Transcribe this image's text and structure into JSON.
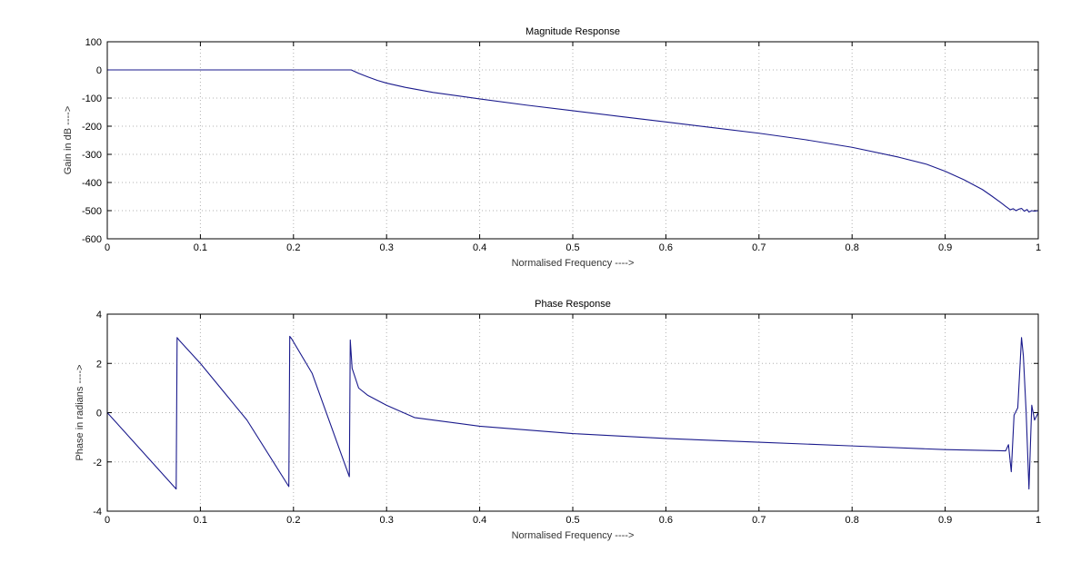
{
  "chart_data": [
    {
      "type": "line",
      "title": "Magnitude Response",
      "xlabel": "Normalised Frequency ---->",
      "ylabel": "Gain in dB ---->",
      "xlim": [
        0,
        1
      ],
      "ylim": [
        -600,
        100
      ],
      "xticks": [
        0,
        0.1,
        0.2,
        0.3,
        0.4,
        0.5,
        0.6,
        0.7,
        0.8,
        0.9,
        1
      ],
      "yticks": [
        -600,
        -500,
        -400,
        -300,
        -200,
        -100,
        0,
        100
      ],
      "grid": true,
      "color": "#1a1a8c",
      "series": [
        {
          "x": [
            0,
            0.1,
            0.2,
            0.262,
            0.27,
            0.28,
            0.29,
            0.3,
            0.32,
            0.35,
            0.4,
            0.45,
            0.5,
            0.55,
            0.6,
            0.65,
            0.7,
            0.75,
            0.8,
            0.85,
            0.88,
            0.9,
            0.92,
            0.94,
            0.95,
            0.96,
            0.965,
            0.97,
            0.973,
            0.976,
            0.979,
            0.982,
            0.985,
            0.988,
            0.99,
            0.993,
            0.996,
            1.0
          ],
          "y": [
            0,
            0,
            0,
            0,
            -12,
            -25,
            -37,
            -47,
            -62,
            -80,
            -103,
            -125,
            -145,
            -165,
            -185,
            -205,
            -225,
            -248,
            -275,
            -310,
            -335,
            -360,
            -390,
            -425,
            -448,
            -472,
            -485,
            -497,
            -493,
            -500,
            -495,
            -492,
            -502,
            -496,
            -505,
            -500,
            -502,
            -500
          ]
        }
      ]
    },
    {
      "type": "line",
      "title": "Phase Response",
      "xlabel": "Normalised Frequency ---->",
      "ylabel": "Phase in radians ---->",
      "xlim": [
        0,
        1
      ],
      "ylim": [
        -4,
        4
      ],
      "xticks": [
        0,
        0.1,
        0.2,
        0.3,
        0.4,
        0.5,
        0.6,
        0.7,
        0.8,
        0.9,
        1
      ],
      "yticks": [
        -4,
        -2,
        0,
        2,
        4
      ],
      "grid": true,
      "color": "#1a1a8c",
      "series": [
        {
          "x": [
            0,
            0.074,
            0.075,
            0.077,
            0.1,
            0.15,
            0.195,
            0.196,
            0.198,
            0.22,
            0.24,
            0.26,
            0.261,
            0.263,
            0.27,
            0.28,
            0.3,
            0.33,
            0.4,
            0.5,
            0.6,
            0.7,
            0.8,
            0.9,
            0.965,
            0.968,
            0.971,
            0.974,
            0.978,
            0.982,
            0.984,
            0.987,
            0.99,
            0.993,
            0.996,
            1.0
          ],
          "y": [
            0,
            -3.1,
            3.05,
            2.95,
            2.0,
            -0.3,
            -3.0,
            3.1,
            3.0,
            1.6,
            -0.5,
            -2.6,
            2.95,
            1.8,
            1.0,
            0.7,
            0.3,
            -0.2,
            -0.55,
            -0.85,
            -1.05,
            -1.2,
            -1.35,
            -1.5,
            -1.55,
            -1.3,
            -2.4,
            -0.1,
            0.2,
            3.05,
            2.3,
            0.0,
            -3.1,
            0.3,
            -0.3,
            0.0
          ]
        }
      ]
    }
  ]
}
